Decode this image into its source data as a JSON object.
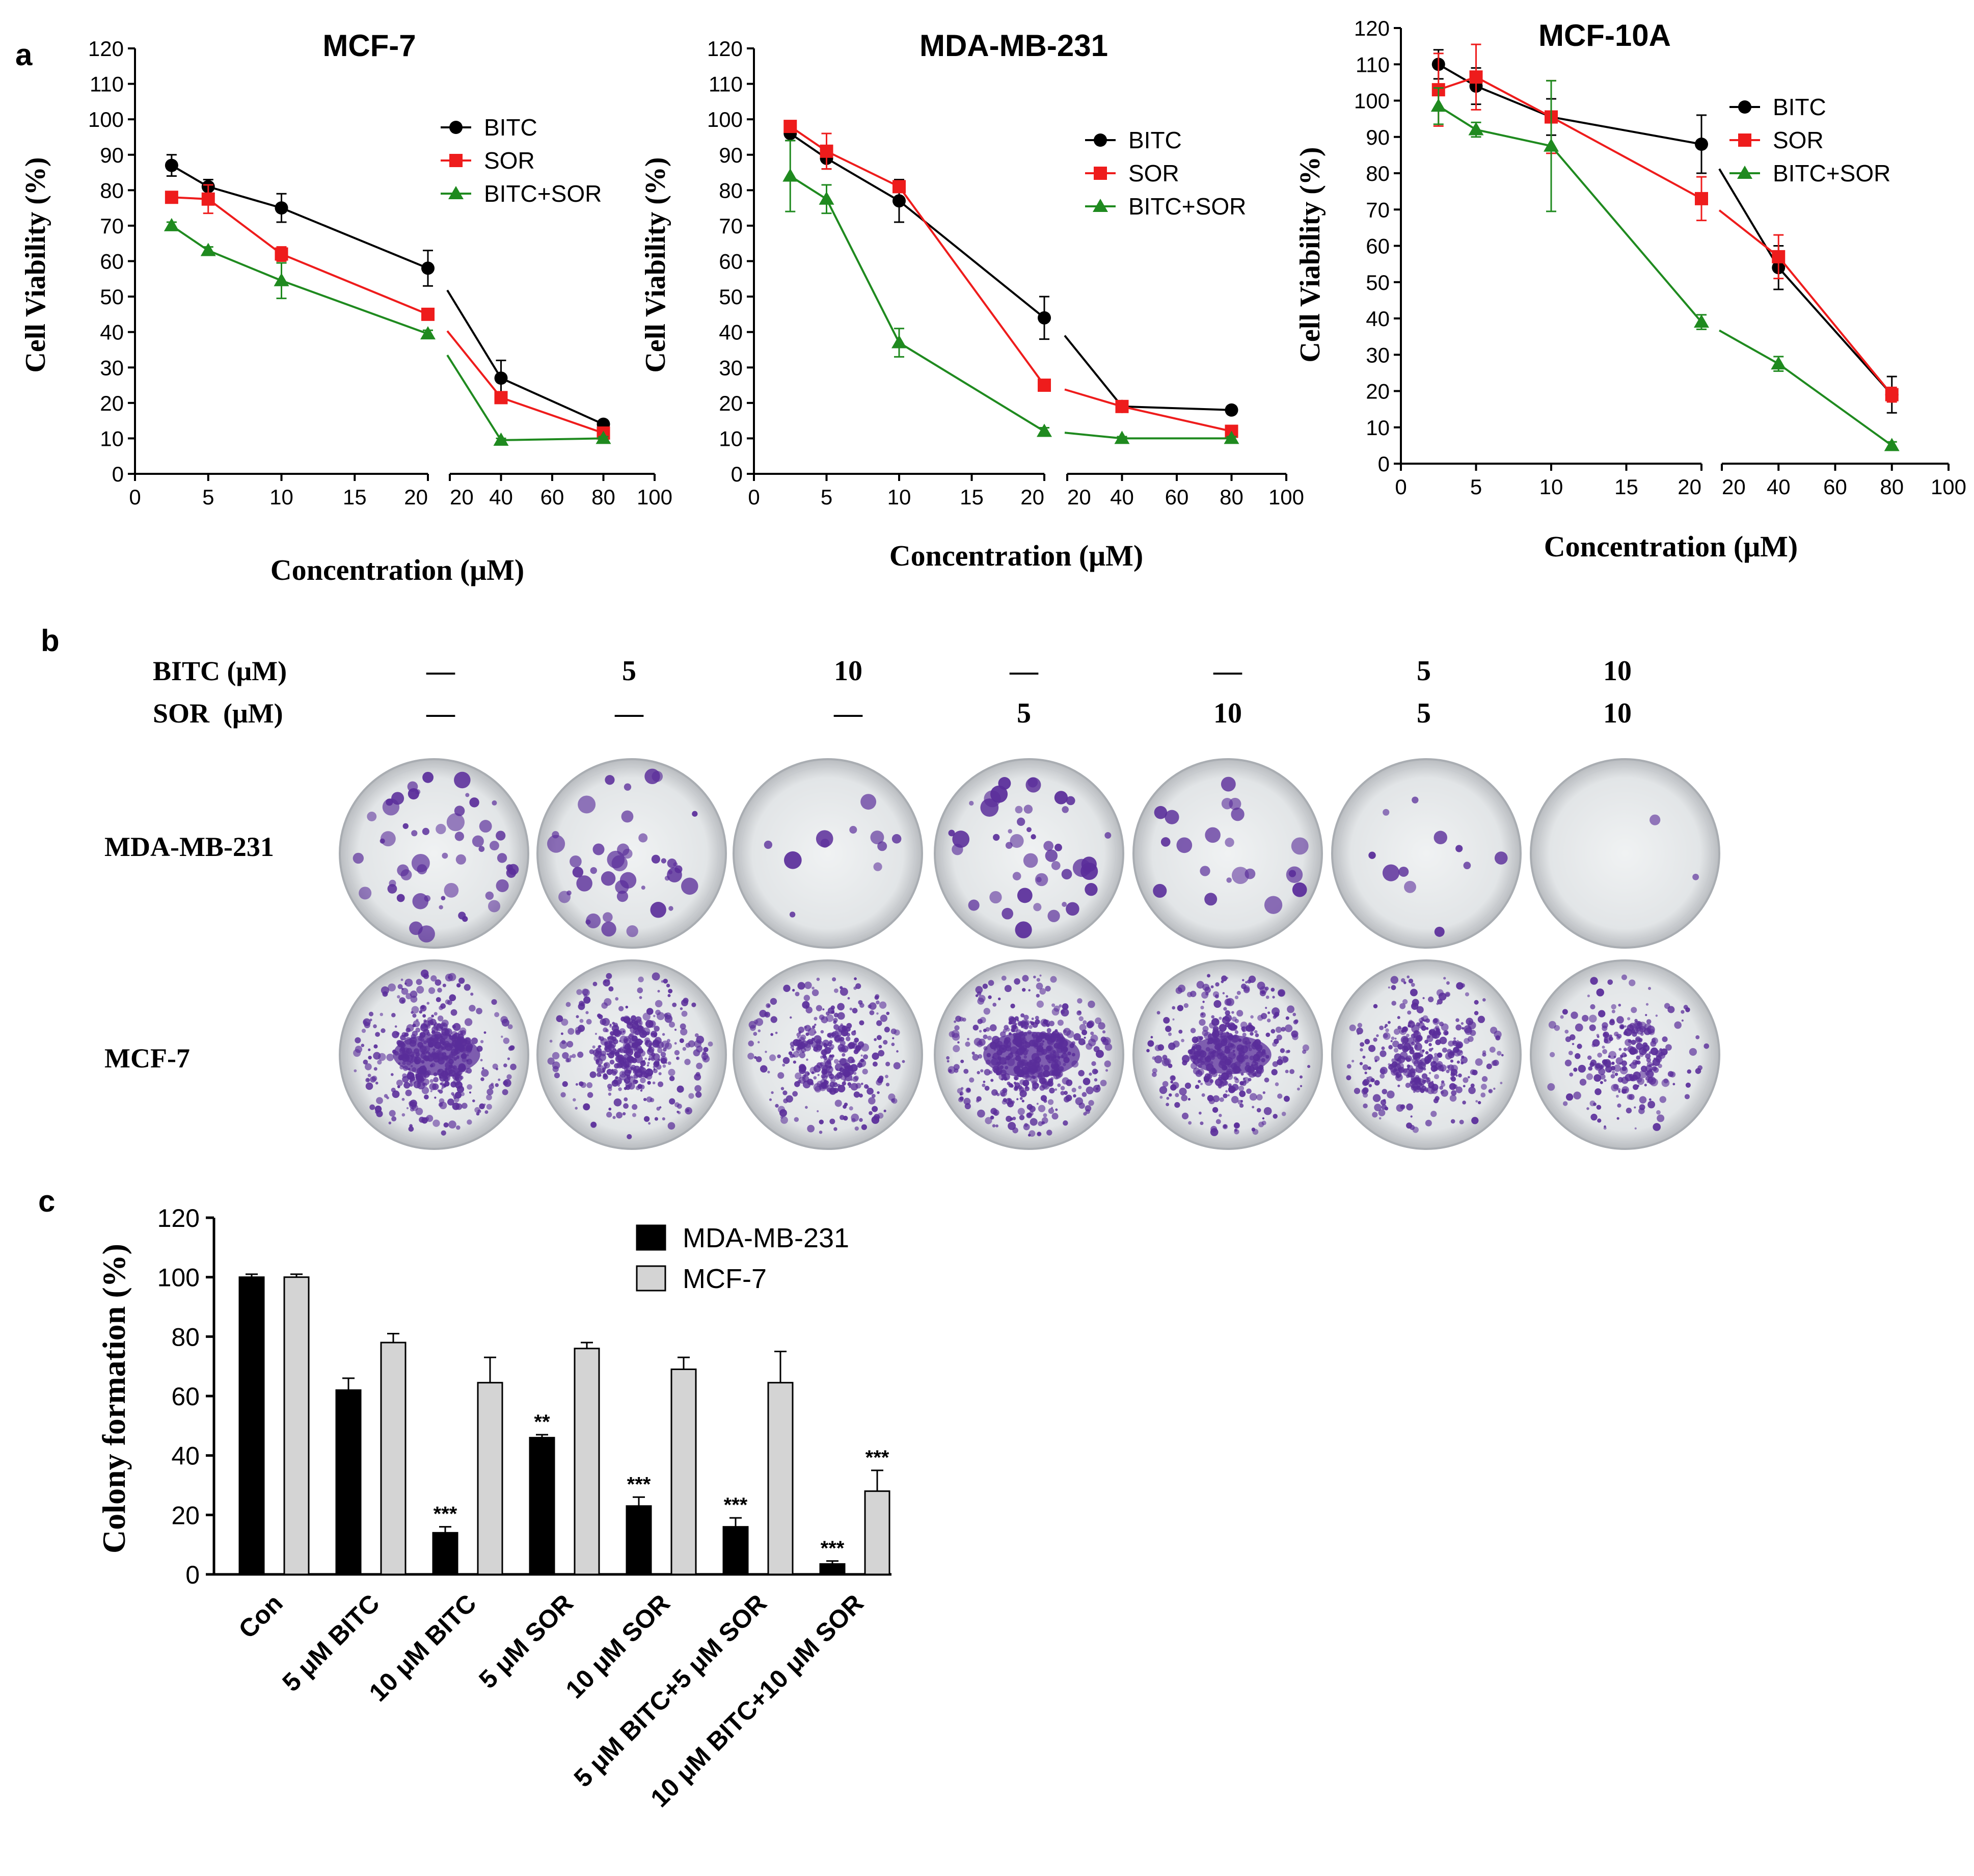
{
  "panels": {
    "a_label": "a",
    "b_label": "b",
    "c_label": "c"
  },
  "colors": {
    "BITC": "#000000",
    "SOR": "#ee1c1c",
    "BITC+SOR": "#1f8a1f",
    "MDA-MB-231_bar": "#000000",
    "MCF-7_bar": "#d4d4d4",
    "crystal_violet": "#5a2d9a"
  },
  "chart_data": [
    {
      "id": "mcf7",
      "type": "line",
      "title": "MCF-7",
      "xlabel": "Concentration (μM)",
      "ylabel": "Cell Viability (%)",
      "ylim": [
        0,
        120
      ],
      "yticks": [
        "0",
        "10",
        "20",
        "30",
        "40",
        "50",
        "60",
        "70",
        "80",
        "90",
        "100",
        "110",
        "120"
      ],
      "x_left_ticks": [
        "0",
        "5",
        "10",
        "15",
        "20"
      ],
      "x_right_ticks": [
        "20",
        "40",
        "60",
        "80",
        "100"
      ],
      "x_break": "20",
      "legend_position": "upper-right",
      "x": [
        2.5,
        5,
        10,
        20,
        40,
        80
      ],
      "series": [
        {
          "name": "BITC",
          "marker": "circle",
          "values": [
            87,
            81,
            75,
            58,
            27,
            14
          ],
          "errors": [
            3,
            2,
            4,
            5,
            5,
            1
          ]
        },
        {
          "name": "SOR",
          "marker": "square",
          "values": [
            78,
            77.5,
            62,
            45,
            21.5,
            11.5
          ],
          "errors": [
            1,
            4,
            2,
            1,
            1,
            1
          ]
        },
        {
          "name": "BITC+SOR",
          "marker": "triangle",
          "values": [
            70,
            63,
            54.5,
            39.5,
            9.5,
            10
          ],
          "errors": [
            1,
            1,
            5,
            1,
            0.5,
            0.5
          ]
        }
      ]
    },
    {
      "id": "mda",
      "type": "line",
      "title": "MDA-MB-231",
      "xlabel": "Concentration (μM)",
      "ylabel": "Cell Viability (%)",
      "ylim": [
        0,
        120
      ],
      "yticks": [
        "0",
        "10",
        "20",
        "30",
        "40",
        "50",
        "60",
        "70",
        "80",
        "90",
        "100",
        "110",
        "120"
      ],
      "x_left_ticks": [
        "0",
        "5",
        "10",
        "15",
        "20"
      ],
      "x_right_ticks": [
        "20",
        "40",
        "60",
        "80",
        "100"
      ],
      "x_break": "20",
      "legend_position": "upper-right",
      "x": [
        2.5,
        5,
        10,
        20,
        40,
        80
      ],
      "series": [
        {
          "name": "BITC",
          "marker": "circle",
          "values": [
            96,
            89,
            77,
            44,
            19,
            18
          ],
          "errors": [
            2,
            3,
            6,
            6,
            1,
            1
          ]
        },
        {
          "name": "SOR",
          "marker": "square",
          "values": [
            98,
            91,
            81,
            25,
            19,
            12
          ],
          "errors": [
            1,
            5,
            1,
            1,
            1,
            1
          ]
        },
        {
          "name": "BITC+SOR",
          "marker": "triangle",
          "values": [
            84,
            77.5,
            37,
            12,
            10,
            10
          ],
          "errors": [
            10,
            4,
            4,
            1,
            0.5,
            0.5
          ]
        }
      ]
    },
    {
      "id": "mcf10a",
      "type": "line",
      "title": "MCF-10A",
      "xlabel": "Concentration (μM)",
      "ylabel": "Cell Viability (%)",
      "ylim": [
        0,
        120
      ],
      "yticks": [
        "0",
        "10",
        "20",
        "30",
        "40",
        "50",
        "60",
        "70",
        "80",
        "90",
        "100",
        "110",
        "120"
      ],
      "x_left_ticks": [
        "0",
        "5",
        "10",
        "15",
        "20"
      ],
      "x_right_ticks": [
        "20",
        "40",
        "60",
        "80",
        "100"
      ],
      "x_break": "20",
      "legend_position": "upper-right",
      "x": [
        2.5,
        5,
        10,
        20,
        40,
        80
      ],
      "series": [
        {
          "name": "BITC",
          "marker": "circle",
          "values": [
            110,
            104,
            95.5,
            88,
            54,
            19
          ],
          "errors": [
            4,
            5,
            5,
            8,
            6,
            5
          ]
        },
        {
          "name": "SOR",
          "marker": "square",
          "values": [
            103,
            106.5,
            95.5,
            73,
            57,
            19
          ],
          "errors": [
            10,
            9,
            10,
            6,
            6,
            2
          ]
        },
        {
          "name": "BITC+SOR",
          "marker": "triangle",
          "values": [
            98.5,
            92,
            87.5,
            39,
            27.5,
            5
          ],
          "errors": [
            5,
            2,
            18,
            2,
            2,
            1
          ]
        }
      ]
    },
    {
      "id": "colony",
      "type": "bar",
      "ylabel": "Colony formation (%)",
      "ylim": [
        0,
        120
      ],
      "yticks": [
        "0",
        "20",
        "40",
        "60",
        "80",
        "100",
        "120"
      ],
      "legend_position": "upper-center",
      "categories": [
        "Con",
        "5 μM BITC",
        "10 μM BITC",
        "5 μM SOR",
        "10 μM SOR",
        "5 μM BITC+5 μM SOR",
        "10 μM BITC+10 μM SOR"
      ],
      "series": [
        {
          "name": "MDA-MB-231",
          "values": [
            100,
            62,
            14,
            46,
            23,
            16,
            3.5
          ],
          "errors": [
            1,
            4,
            2,
            1,
            3,
            3,
            1
          ],
          "significance": [
            "",
            "",
            "***",
            "**",
            "***",
            "***",
            "***"
          ]
        },
        {
          "name": "MCF-7",
          "values": [
            100,
            78,
            64.5,
            76,
            69,
            64.5,
            28
          ],
          "errors": [
            1,
            3,
            8.5,
            2,
            4,
            10.5,
            7
          ],
          "significance": [
            "",
            "",
            "",
            "",
            "",
            "",
            "***"
          ]
        }
      ]
    }
  ],
  "panel_b": {
    "row_labels": [
      "BITC (μM)",
      "SOR  (μM)"
    ],
    "bitc_doses": [
      "—",
      "5",
      "10",
      "—",
      "—",
      "5",
      "10"
    ],
    "sor_doses": [
      "—",
      "—",
      "—",
      "5",
      "10",
      "5",
      "10"
    ],
    "cell_lines": [
      "MDA-MB-231",
      "MCF-7"
    ],
    "colony_density": {
      "MDA-MB-231": [
        0.75,
        0.6,
        0.15,
        0.65,
        0.3,
        0.15,
        0.03
      ],
      "MCF-7": [
        0.9,
        0.8,
        0.7,
        1.0,
        0.85,
        0.75,
        0.5
      ]
    }
  }
}
